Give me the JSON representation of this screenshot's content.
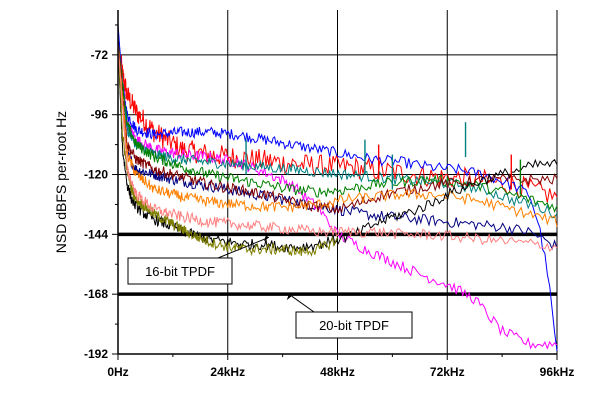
{
  "chart_data": {
    "type": "line",
    "ylabel": "NSD dBFS per-root Hz",
    "xlim": [
      0,
      96
    ],
    "ylim": [
      -192,
      -54
    ],
    "x_ticks": [
      0,
      24,
      48,
      72,
      96
    ],
    "x_tick_labels": [
      "0Hz",
      "24kHz",
      "48kHz",
      "72kHz",
      "96kHz"
    ],
    "y_ticks": [
      -72,
      -96,
      -120,
      -144,
      -168,
      -192
    ],
    "y_tick_labels": [
      "-72",
      "-96",
      "-120",
      "-144",
      "-168",
      "-192"
    ],
    "grid": true,
    "annotations": [
      {
        "text": "16-bit TPDF",
        "x": 33,
        "y": -144
      },
      {
        "text": "20-bit TPDF",
        "x": 38,
        "y": -168
      }
    ],
    "series": [
      {
        "color": "#000000",
        "style": "thick",
        "x": [
          0,
          96
        ],
        "y": [
          -144,
          -144
        ]
      },
      {
        "color": "#000000",
        "style": "thick",
        "x": [
          0,
          96
        ],
        "y": [
          -168,
          -168
        ]
      },
      {
        "color": "#ff0000",
        "x": [
          0,
          1,
          2,
          4,
          8,
          14,
          20,
          30,
          40,
          50,
          60,
          70,
          78,
          86,
          96
        ],
        "y": [
          -66,
          -80,
          -88,
          -95,
          -103,
          -110,
          -112,
          -114,
          -116,
          -117,
          -119,
          -121,
          -122,
          -124,
          -129
        ]
      },
      {
        "color": "#0000ff",
        "x": [
          0,
          1,
          2,
          4,
          8,
          14,
          20,
          26,
          32,
          38,
          44,
          50,
          56,
          62,
          68,
          74,
          80,
          86,
          90,
          92,
          94,
          96
        ],
        "y": [
          -60,
          -84,
          -96,
          -102,
          -104,
          -103,
          -103,
          -104,
          -106,
          -108,
          -110,
          -112,
          -114,
          -115,
          -117,
          -118,
          -120,
          -124,
          -128,
          -140,
          -160,
          -192
        ]
      },
      {
        "color": "#000080",
        "x": [
          0,
          2,
          4,
          8,
          12,
          18,
          24,
          30,
          36,
          42,
          48,
          54,
          60,
          66,
          72,
          78,
          84,
          90,
          96
        ],
        "y": [
          -68,
          -112,
          -118,
          -120,
          -122,
          -124,
          -126,
          -128,
          -130,
          -132,
          -134,
          -136,
          -137,
          -138,
          -139,
          -140,
          -141,
          -143,
          -149
        ]
      },
      {
        "color": "#ff00ff",
        "x": [
          0,
          2,
          4,
          8,
          14,
          20,
          26,
          32,
          38,
          44,
          48,
          54,
          60,
          66,
          72,
          78,
          84,
          90,
          96
        ],
        "y": [
          -66,
          -100,
          -106,
          -110,
          -112,
          -113,
          -115,
          -119,
          -124,
          -134,
          -144,
          -150,
          -155,
          -160,
          -164,
          -170,
          -183,
          -188,
          -188
        ]
      },
      {
        "color": "#008080",
        "x": [
          0,
          2,
          4,
          8,
          14,
          20,
          26,
          32,
          38,
          44,
          50,
          56,
          62,
          68,
          74,
          80,
          86,
          92,
          96
        ],
        "y": [
          -66,
          -102,
          -108,
          -112,
          -114,
          -115,
          -116,
          -117,
          -118,
          -119,
          -120,
          -121,
          -122,
          -123,
          -124,
          -126,
          -130,
          -133,
          -136
        ]
      },
      {
        "color": "#008000",
        "x": [
          0,
          2,
          4,
          8,
          14,
          20,
          26,
          32,
          38,
          44,
          50,
          56,
          62,
          68,
          74,
          80,
          86,
          92,
          96
        ],
        "y": [
          -66,
          -100,
          -108,
          -113,
          -117,
          -120,
          -122,
          -124,
          -126,
          -127,
          -126,
          -124,
          -123,
          -122,
          -123,
          -125,
          -128,
          -131,
          -133
        ]
      },
      {
        "color": "#800000",
        "x": [
          0,
          2,
          4,
          8,
          14,
          20,
          26,
          32,
          38,
          44,
          48,
          52,
          58,
          64,
          70,
          76,
          82,
          88,
          96
        ],
        "y": [
          -66,
          -108,
          -114,
          -118,
          -121,
          -124,
          -126,
          -128,
          -131,
          -133,
          -134,
          -132,
          -128,
          -126,
          -124,
          -123,
          -122,
          -122,
          -122
        ]
      },
      {
        "color": "#ff8000",
        "x": [
          0,
          2,
          4,
          8,
          14,
          20,
          26,
          32,
          38,
          44,
          50,
          56,
          62,
          68,
          74,
          80,
          86,
          92,
          96
        ],
        "y": [
          -68,
          -112,
          -120,
          -126,
          -129,
          -131,
          -132,
          -133,
          -133,
          -132,
          -130,
          -129,
          -128,
          -128,
          -129,
          -131,
          -134,
          -137,
          -139
        ]
      },
      {
        "color": "#000000",
        "x": [
          0,
          1,
          2,
          3,
          4,
          6,
          8,
          12,
          16,
          20,
          24,
          28,
          32,
          36,
          40,
          44,
          48,
          52,
          56,
          60,
          64,
          68,
          72,
          76,
          80,
          84,
          88,
          92,
          96
        ],
        "y": [
          -68,
          -110,
          -124,
          -130,
          -133,
          -136,
          -138,
          -141,
          -144,
          -146,
          -147,
          -148,
          -148,
          -149,
          -149,
          -148,
          -146,
          -144,
          -140,
          -137,
          -135,
          -132,
          -128,
          -125,
          -122,
          -120,
          -118,
          -116,
          -116
        ]
      },
      {
        "color": "#808000",
        "x": [
          0,
          1,
          2,
          3,
          4,
          6,
          8,
          12,
          16,
          20,
          24,
          28,
          32,
          36,
          40,
          44,
          48
        ],
        "y": [
          -68,
          -104,
          -118,
          -126,
          -130,
          -133,
          -136,
          -140,
          -144,
          -147,
          -149,
          -150,
          -150,
          -150,
          -151,
          -150,
          -146
        ]
      },
      {
        "color": "#ff8080",
        "x": [
          0,
          2,
          4,
          8,
          14,
          20,
          26,
          32,
          38,
          44,
          50,
          56,
          62,
          68,
          74,
          80,
          86,
          92,
          96
        ],
        "y": [
          -68,
          -118,
          -128,
          -134,
          -137,
          -139,
          -140,
          -141,
          -142,
          -143,
          -143,
          -143,
          -144,
          -144,
          -145,
          -146,
          -147,
          -148,
          -149
        ]
      }
    ],
    "spikes": [
      {
        "x": 28,
        "y_top": -106,
        "color": "#008080"
      },
      {
        "x": 54,
        "y_top": -106,
        "color": "#008080"
      },
      {
        "x": 57,
        "y_top": -108,
        "color": "#ff0000"
      },
      {
        "x": 60,
        "y_top": -112,
        "color": "#008080"
      },
      {
        "x": 76,
        "y_top": -99,
        "color": "#008080"
      },
      {
        "x": 86,
        "y_top": -112,
        "color": "#ff0000"
      },
      {
        "x": 88,
        "y_top": -114,
        "color": "#008000"
      }
    ]
  }
}
